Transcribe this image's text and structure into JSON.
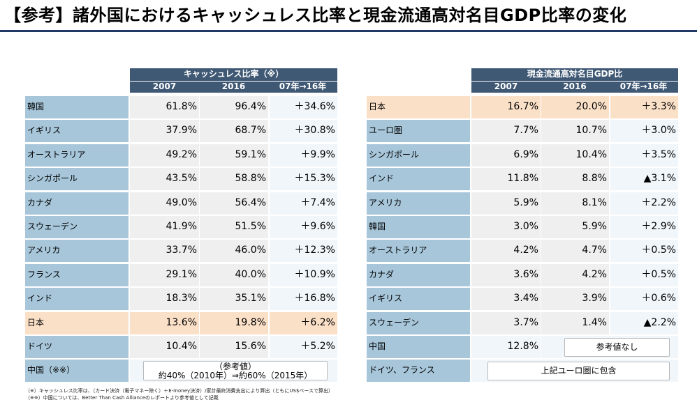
{
  "title": "【参考】諸外国におけるキャッシュレス比率と現金流通高対名目GDP比率の変化",
  "colors": {
    "header_bg": "#3f5874",
    "label_bg": "#a7c6da",
    "highlight_bg": "#fbe0c8",
    "rule": "#1f3864"
  },
  "left_table": {
    "header": "キャッシュレス比率（※）",
    "columns": [
      "2007",
      "2016",
      "07年→16年"
    ],
    "rows": [
      {
        "country": "韓国",
        "v2007": "61.8%",
        "v2016": "96.4%",
        "change": "＋34.6%"
      },
      {
        "country": "イギリス",
        "v2007": "37.9%",
        "v2016": "68.7%",
        "change": "＋30.8%"
      },
      {
        "country": "オーストラリア",
        "v2007": "49.2%",
        "v2016": "59.1%",
        "change": "＋9.9%"
      },
      {
        "country": "シンガポール",
        "v2007": "43.5%",
        "v2016": "58.8%",
        "change": "＋15.3%"
      },
      {
        "country": "カナダ",
        "v2007": "49.0%",
        "v2016": "56.4%",
        "change": "＋7.4%"
      },
      {
        "country": "スウェーデン",
        "v2007": "41.9%",
        "v2016": "51.5%",
        "change": "＋9.6%"
      },
      {
        "country": "アメリカ",
        "v2007": "33.7%",
        "v2016": "46.0%",
        "change": "＋12.3%"
      },
      {
        "country": "フランス",
        "v2007": "29.1%",
        "v2016": "40.0%",
        "change": "＋10.9%"
      },
      {
        "country": "インド",
        "v2007": "18.3%",
        "v2016": "35.1%",
        "change": "＋16.8%"
      },
      {
        "country": "日本",
        "v2007": "13.6%",
        "v2016": "19.8%",
        "change": "＋6.2%"
      },
      {
        "country": "ドイツ",
        "v2007": "10.4%",
        "v2016": "15.6%",
        "change": "＋5.2%"
      }
    ],
    "china": {
      "label": "中国（※※）",
      "note_title": "（参考値）",
      "note_body": "約40%（2010年）⇒約60%（2015年）"
    }
  },
  "right_table": {
    "header": "現金流通高対名目GDP比",
    "columns": [
      "2007",
      "2016",
      "07年→16年"
    ],
    "rows": [
      {
        "country": "日本",
        "v2007": "16.7%",
        "v2016": "20.0%",
        "change": "＋3.3%"
      },
      {
        "country": "ユーロ圏",
        "v2007": "7.7%",
        "v2016": "10.7%",
        "change": "＋3.0%"
      },
      {
        "country": "シンガポール",
        "v2007": "6.9%",
        "v2016": "10.4%",
        "change": "＋3.5%"
      },
      {
        "country": "インド",
        "v2007": "11.8%",
        "v2016": "8.8%",
        "change": "▲3.1%"
      },
      {
        "country": "アメリカ",
        "v2007": "5.9%",
        "v2016": "8.1%",
        "change": "＋2.2%"
      },
      {
        "country": "韓国",
        "v2007": "3.0%",
        "v2016": "5.9%",
        "change": "＋2.9%"
      },
      {
        "country": "オーストラリア",
        "v2007": "4.2%",
        "v2016": "4.7%",
        "change": "＋0.5%"
      },
      {
        "country": "カナダ",
        "v2007": "3.6%",
        "v2016": "4.2%",
        "change": "＋0.5%"
      },
      {
        "country": "イギリス",
        "v2007": "3.4%",
        "v2016": "3.9%",
        "change": "＋0.6%"
      },
      {
        "country": "スウェーデン",
        "v2007": "3.7%",
        "v2016": "1.4%",
        "change": "▲2.2%"
      }
    ],
    "china": {
      "label": "中国",
      "v2007": "12.8%",
      "note": "参考値なし"
    },
    "germany_france": {
      "label": "ドイツ、フランス",
      "note": "上記ユーロ圏に包含"
    }
  },
  "footnotes": [
    "（※）キャッシュレス比率は、（カード決済（電子マネー除く）＋E-money決済）/家計最終消費支出により算出（ともにUS$ベースで算出）",
    "（※※）中国については、Better Than Cash Allianceのレポートより参考値として記載"
  ]
}
